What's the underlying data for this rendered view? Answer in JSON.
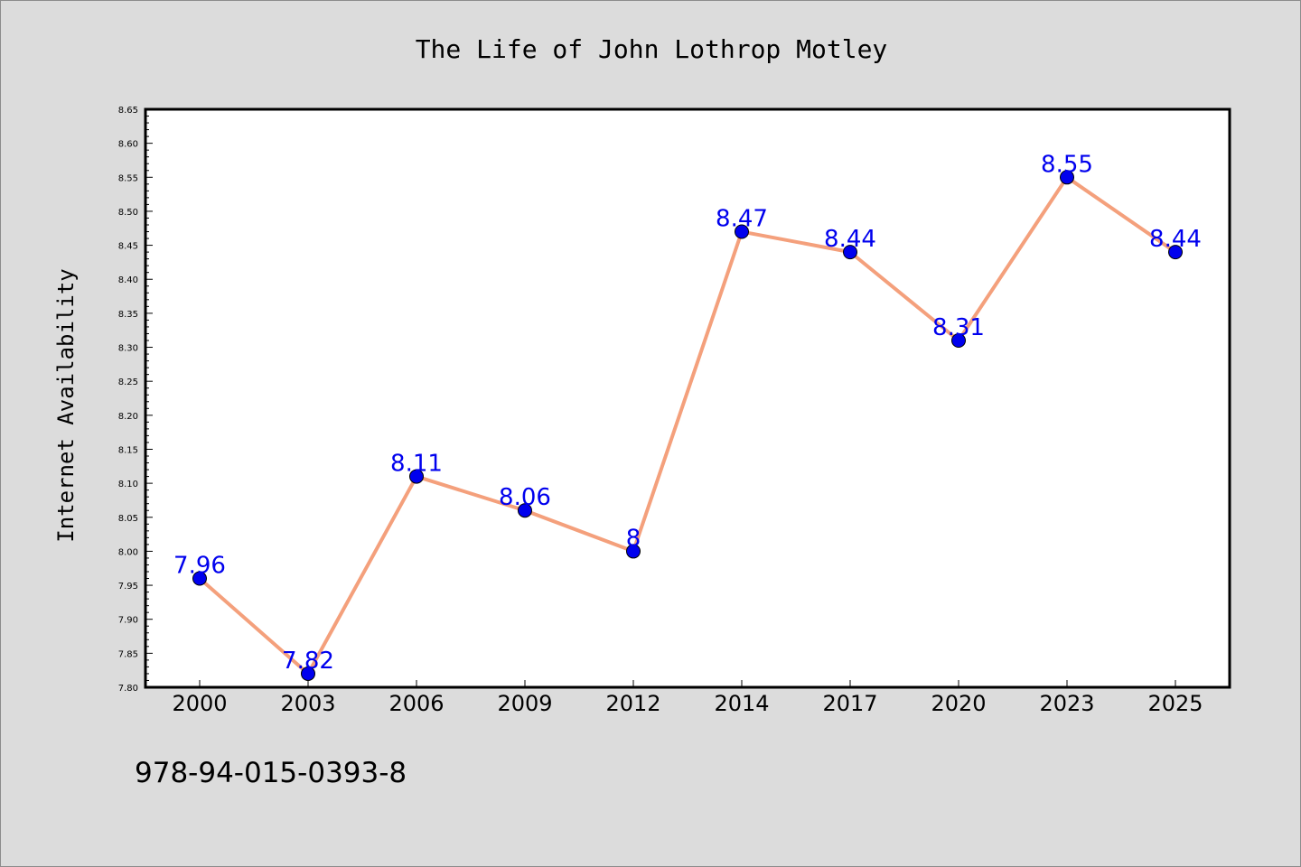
{
  "chart_data": {
    "type": "line",
    "title": "The Life of John Lothrop Motley",
    "xlabel": "",
    "ylabel": "Internet Availability",
    "categories": [
      "2000",
      "2003",
      "2006",
      "2009",
      "2012",
      "2014",
      "2017",
      "2020",
      "2023",
      "2025"
    ],
    "values": [
      7.96,
      7.82,
      8.11,
      8.06,
      8,
      8.47,
      8.44,
      8.31,
      8.55,
      8.44
    ],
    "data_labels": [
      "7.96",
      "7.82",
      "8.11",
      "8.06",
      "8",
      "8.47",
      "8.44",
      "8.31",
      "8.55",
      "8.44"
    ],
    "ylim": [
      7.8,
      8.65
    ],
    "y_ticks": [
      "7.80",
      "7.85",
      "7.90",
      "7.95",
      "8.00",
      "8.05",
      "8.10",
      "8.15",
      "8.20",
      "8.25",
      "8.30",
      "8.35",
      "8.40",
      "8.45",
      "8.50",
      "8.55",
      "8.60",
      "8.65"
    ],
    "y_minor_step": 0.01,
    "grid": false,
    "legend": "none",
    "line_color": "#f4a07c",
    "marker_color": "#0000ee",
    "label_color": "#0000ee",
    "annotation": "978-94-015-0393-8"
  }
}
